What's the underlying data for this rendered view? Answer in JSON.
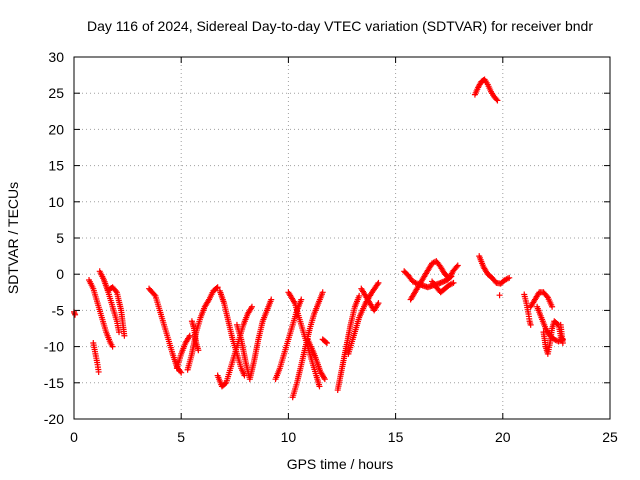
{
  "chart_data": {
    "type": "scatter",
    "title": "Day 116 of 2024, Sidereal Day-to-day VTEC variation (SDTVAR) for receiver bndr",
    "xlabel": "GPS time / hours",
    "ylabel": "SDTVAR / TECUs",
    "xlim": [
      0,
      25
    ],
    "ylim": [
      -20,
      30
    ],
    "xticks": [
      0,
      5,
      10,
      15,
      20,
      25
    ],
    "yticks": [
      -20,
      -15,
      -10,
      -5,
      0,
      5,
      10,
      15,
      20,
      25,
      30
    ],
    "grid": true,
    "marker": "plus",
    "color": "#ff0000",
    "series": [
      {
        "name": "arc01",
        "points": [
          [
            0.0,
            -5.2
          ],
          [
            0.05,
            -5.6
          ]
        ]
      },
      {
        "name": "arc02",
        "points": [
          [
            0.7,
            -0.8
          ],
          [
            0.9,
            -2
          ],
          [
            1.1,
            -4
          ],
          [
            1.3,
            -6
          ],
          [
            1.5,
            -8
          ],
          [
            1.7,
            -9.5
          ],
          [
            1.8,
            -10
          ]
        ]
      },
      {
        "name": "arc03",
        "points": [
          [
            0.9,
            -9.5
          ],
          [
            1.0,
            -11
          ],
          [
            1.1,
            -12.5
          ],
          [
            1.15,
            -13.5
          ]
        ]
      },
      {
        "name": "arc04",
        "points": [
          [
            1.2,
            0.4
          ],
          [
            1.4,
            -0.8
          ],
          [
            1.6,
            -2.5
          ],
          [
            1.8,
            -4.5
          ],
          [
            2.0,
            -6.5
          ],
          [
            2.1,
            -8
          ]
        ]
      },
      {
        "name": "arc05",
        "points": [
          [
            1.6,
            -2.2
          ],
          [
            1.8,
            -1.8
          ],
          [
            2.0,
            -2.5
          ],
          [
            2.2,
            -5
          ],
          [
            2.35,
            -8.5
          ]
        ]
      },
      {
        "name": "arc06",
        "points": [
          [
            3.5,
            -2
          ],
          [
            3.8,
            -3
          ],
          [
            4.0,
            -5
          ],
          [
            4.2,
            -7
          ],
          [
            4.4,
            -9
          ],
          [
            4.6,
            -11
          ],
          [
            4.8,
            -12.8
          ],
          [
            5.0,
            -13.6
          ]
        ]
      },
      {
        "name": "arc07",
        "points": [
          [
            4.8,
            -13
          ],
          [
            5.0,
            -11
          ],
          [
            5.2,
            -9.5
          ],
          [
            5.4,
            -8.5
          ]
        ]
      },
      {
        "name": "arc08",
        "points": [
          [
            5.3,
            -13.2
          ],
          [
            5.5,
            -11
          ],
          [
            5.7,
            -8
          ],
          [
            5.9,
            -6
          ],
          [
            6.1,
            -4.5
          ],
          [
            6.3,
            -3.5
          ],
          [
            6.5,
            -2.3
          ],
          [
            6.7,
            -1.8
          ]
        ]
      },
      {
        "name": "arc09",
        "points": [
          [
            5.5,
            -6.5
          ],
          [
            5.6,
            -7.5
          ],
          [
            5.7,
            -9.5
          ],
          [
            5.8,
            -10.5
          ]
        ]
      },
      {
        "name": "arc10",
        "points": [
          [
            6.8,
            -2.3
          ],
          [
            7.0,
            -4
          ],
          [
            7.2,
            -6.5
          ],
          [
            7.4,
            -9
          ],
          [
            7.6,
            -11
          ],
          [
            7.8,
            -13
          ],
          [
            7.95,
            -14
          ]
        ]
      },
      {
        "name": "arc11",
        "points": [
          [
            6.7,
            -14
          ],
          [
            6.9,
            -15.5
          ],
          [
            7.1,
            -15
          ],
          [
            7.3,
            -13
          ],
          [
            7.5,
            -11
          ],
          [
            7.7,
            -9
          ],
          [
            7.9,
            -7
          ],
          [
            8.1,
            -5.5
          ],
          [
            8.3,
            -4.5
          ]
        ]
      },
      {
        "name": "arc12",
        "points": [
          [
            7.6,
            -7
          ],
          [
            7.8,
            -9
          ],
          [
            8.0,
            -12
          ],
          [
            8.2,
            -14.5
          ],
          [
            8.4,
            -12
          ],
          [
            8.6,
            -9
          ],
          [
            8.8,
            -6.5
          ],
          [
            9.0,
            -5
          ],
          [
            9.2,
            -3.5
          ]
        ]
      },
      {
        "name": "arc13",
        "points": [
          [
            9.4,
            -14.5
          ],
          [
            9.6,
            -13
          ],
          [
            9.8,
            -11
          ],
          [
            10.0,
            -9
          ],
          [
            10.2,
            -7
          ],
          [
            10.4,
            -5
          ],
          [
            10.6,
            -3.5
          ]
        ]
      },
      {
        "name": "arc14",
        "points": [
          [
            10.0,
            -2.5
          ],
          [
            10.3,
            -4
          ],
          [
            10.5,
            -6
          ],
          [
            10.7,
            -8
          ],
          [
            10.9,
            -10
          ],
          [
            11.1,
            -12
          ],
          [
            11.3,
            -14
          ],
          [
            11.45,
            -15.5
          ]
        ]
      },
      {
        "name": "arc15",
        "points": [
          [
            10.2,
            -17
          ],
          [
            10.4,
            -15
          ],
          [
            10.6,
            -12.5
          ],
          [
            10.8,
            -10
          ],
          [
            11.0,
            -7.5
          ],
          [
            11.2,
            -5.5
          ],
          [
            11.4,
            -4
          ],
          [
            11.6,
            -2.5
          ]
        ]
      },
      {
        "name": "arc16",
        "points": [
          [
            10.9,
            -9
          ],
          [
            11.2,
            -11
          ],
          [
            11.5,
            -13.5
          ],
          [
            11.7,
            -14.5
          ]
        ]
      },
      {
        "name": "arc17",
        "points": [
          [
            11.6,
            -9
          ],
          [
            11.8,
            -9.5
          ]
        ]
      },
      {
        "name": "arc18",
        "points": [
          [
            12.3,
            -16
          ],
          [
            12.5,
            -13
          ],
          [
            12.7,
            -10
          ],
          [
            12.9,
            -7
          ],
          [
            13.1,
            -4.5
          ],
          [
            13.3,
            -3
          ]
        ]
      },
      {
        "name": "arc19",
        "points": [
          [
            12.8,
            -11
          ],
          [
            13.0,
            -9
          ],
          [
            13.3,
            -6
          ],
          [
            13.6,
            -4
          ],
          [
            13.9,
            -2.5
          ],
          [
            14.2,
            -1.2
          ]
        ]
      },
      {
        "name": "arc20",
        "points": [
          [
            13.4,
            -2
          ],
          [
            13.6,
            -3
          ],
          [
            13.8,
            -4
          ],
          [
            14.0,
            -5
          ],
          [
            14.2,
            -4
          ]
        ]
      },
      {
        "name": "arc21",
        "points": [
          [
            15.4,
            0.4
          ],
          [
            15.6,
            -0.2
          ],
          [
            15.8,
            -1
          ],
          [
            16.0,
            -1.3
          ],
          [
            16.2,
            -1.5
          ],
          [
            16.5,
            -1.8
          ],
          [
            16.8,
            -1.5
          ],
          [
            17.1,
            -1.2
          ],
          [
            17.4,
            -0.8
          ],
          [
            17.6,
            -0.3
          ]
        ]
      },
      {
        "name": "arc22",
        "points": [
          [
            15.7,
            -3.5
          ],
          [
            15.9,
            -2.5
          ],
          [
            16.1,
            -1.5
          ],
          [
            16.3,
            -0.5
          ],
          [
            16.5,
            0.5
          ],
          [
            16.7,
            1.5
          ],
          [
            16.9,
            1.8
          ],
          [
            17.1,
            1
          ],
          [
            17.3,
            0
          ],
          [
            17.5,
            -0.5
          ],
          [
            17.7,
            0.5
          ],
          [
            17.9,
            1.2
          ]
        ]
      },
      {
        "name": "arc23",
        "points": [
          [
            16.7,
            -1
          ],
          [
            16.9,
            -1.8
          ],
          [
            17.1,
            -2.5
          ],
          [
            17.3,
            -2
          ],
          [
            17.5,
            -1.5
          ],
          [
            17.7,
            -1.2
          ]
        ]
      },
      {
        "name": "arc24",
        "points": [
          [
            18.7,
            24.8
          ],
          [
            18.85,
            25.8
          ],
          [
            19.0,
            26.6
          ],
          [
            19.15,
            26.9
          ],
          [
            19.3,
            26.2
          ],
          [
            19.45,
            25.2
          ],
          [
            19.6,
            24.5
          ],
          [
            19.75,
            24
          ]
        ]
      },
      {
        "name": "arc25",
        "points": [
          [
            18.9,
            2.5
          ],
          [
            19.1,
            1
          ],
          [
            19.3,
            0
          ],
          [
            19.5,
            -0.5
          ],
          [
            19.7,
            -1.2
          ],
          [
            19.9,
            -1.3
          ],
          [
            20.1,
            -0.8
          ],
          [
            20.3,
            -0.5
          ]
        ]
      },
      {
        "name": "arc26",
        "points": [
          [
            19.85,
            -2.9
          ]
        ]
      },
      {
        "name": "arc27",
        "points": [
          [
            21.0,
            -2.8
          ],
          [
            21.1,
            -4
          ],
          [
            21.2,
            -5.5
          ],
          [
            21.25,
            -6.5
          ],
          [
            21.3,
            -7
          ]
        ]
      },
      {
        "name": "arc28",
        "points": [
          [
            21.3,
            -4.5
          ],
          [
            21.5,
            -3.5
          ],
          [
            21.7,
            -2.5
          ],
          [
            21.9,
            -2.5
          ],
          [
            22.1,
            -3.2
          ],
          [
            22.3,
            -4.5
          ]
        ]
      },
      {
        "name": "arc29",
        "points": [
          [
            21.9,
            -8
          ],
          [
            22.0,
            -10
          ],
          [
            22.1,
            -11
          ],
          [
            22.2,
            -9.5
          ],
          [
            22.3,
            -7.5
          ],
          [
            22.4,
            -6.5
          ],
          [
            22.6,
            -7
          ],
          [
            22.7,
            -8.5
          ],
          [
            22.8,
            -9.5
          ],
          [
            22.7,
            -7
          ]
        ]
      },
      {
        "name": "arc30",
        "points": [
          [
            21.6,
            -4.5
          ],
          [
            21.8,
            -6
          ],
          [
            22.0,
            -7.5
          ],
          [
            22.2,
            -8.5
          ],
          [
            22.4,
            -9
          ],
          [
            22.6,
            -9.3
          ],
          [
            22.8,
            -9
          ]
        ]
      }
    ]
  }
}
